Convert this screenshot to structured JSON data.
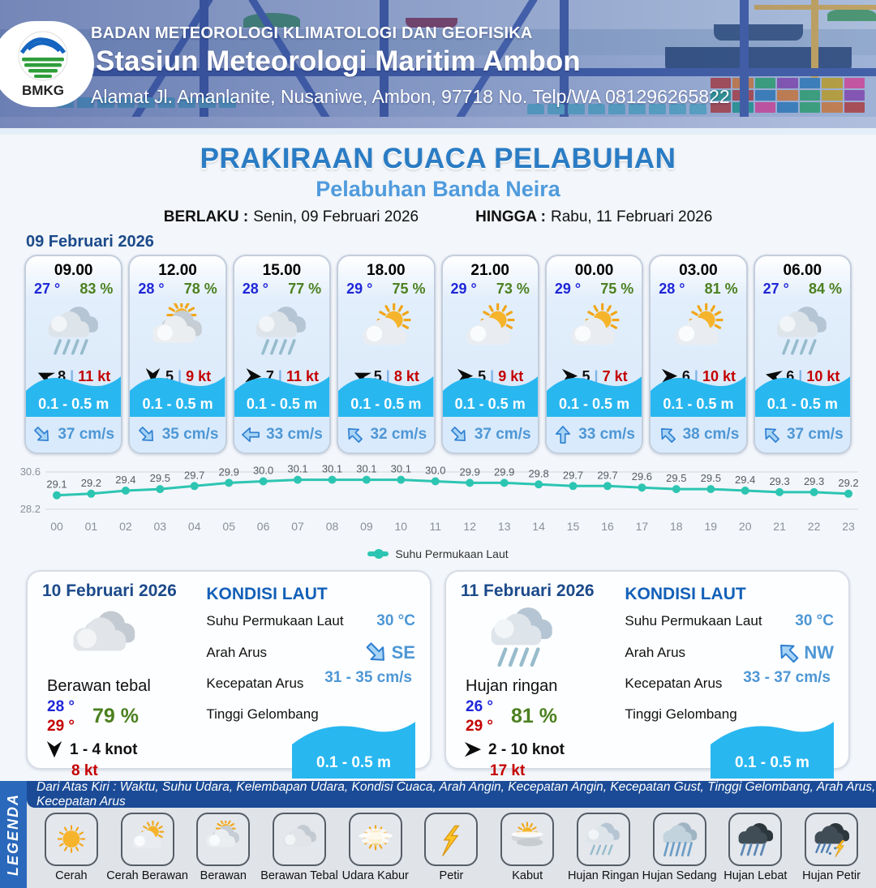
{
  "header": {
    "org": "BADAN METEOROLOGI KLIMATOLOGI DAN GEOFISIKA",
    "station": "Stasiun Meteorologi Maritim Ambon",
    "address": "Alamat Jl. Amanlanite, Nusaniwe, Ambon, 97718   No. Telp/WA  081296265822",
    "logo_text": "BMKG"
  },
  "title": {
    "main": "PRAKIRAAN CUACA PELABUHAN",
    "port": "Pelabuhan Banda Neira",
    "berlaku_label": "BERLAKU :",
    "berlaku_value": "Senin, 09 Februari 2026",
    "hingga_label": "HINGGA :",
    "hingga_value": "Rabu, 11 Februari 2026"
  },
  "forecast_date": "09 Februari 2026",
  "sep": "|",
  "hourly": [
    {
      "time": "09.00",
      "temp": "27 °",
      "humidity": "83 %",
      "icon": "hujan-ringan",
      "wind_deg": 205,
      "wind": "8",
      "gust": "11 kt",
      "wave": "0.1 - 0.5 m",
      "cur_deg": 45,
      "current": "37 cm/s"
    },
    {
      "time": "12.00",
      "temp": "28 °",
      "humidity": "78 %",
      "icon": "berawan",
      "wind_deg": 90,
      "wind": "5",
      "gust": "9 kt",
      "wave": "0.1 - 0.5 m",
      "cur_deg": 45,
      "current": "35 cm/s"
    },
    {
      "time": "15.00",
      "temp": "28 °",
      "humidity": "77 %",
      "icon": "hujan-ringan",
      "wind_deg": 5,
      "wind": "7",
      "gust": "11 kt",
      "wave": "0.1 - 0.5 m",
      "cur_deg": 180,
      "current": "33 cm/s"
    },
    {
      "time": "18.00",
      "temp": "29 °",
      "humidity": "75 %",
      "icon": "cerah-berawan",
      "wind_deg": 205,
      "wind": "5",
      "gust": "8 kt",
      "wave": "0.1 - 0.5 m",
      "cur_deg": -135,
      "current": "32 cm/s"
    },
    {
      "time": "21.00",
      "temp": "29 °",
      "humidity": "73 %",
      "icon": "cerah-berawan",
      "wind_deg": 0,
      "wind": "5",
      "gust": "9 kt",
      "wave": "0.1 - 0.5 m",
      "cur_deg": 45,
      "current": "37 cm/s"
    },
    {
      "time": "00.00",
      "temp": "29 °",
      "humidity": "75 %",
      "icon": "cerah-berawan",
      "wind_deg": 0,
      "wind": "5",
      "gust": "7 kt",
      "wave": "0.1 - 0.5 m",
      "cur_deg": -90,
      "current": "33 cm/s"
    },
    {
      "time": "03.00",
      "temp": "28 °",
      "humidity": "81 %",
      "icon": "cerah-berawan",
      "wind_deg": 0,
      "wind": "6",
      "gust": "10 kt",
      "wave": "0.1 - 0.5 m",
      "cur_deg": -135,
      "current": "38 cm/s"
    },
    {
      "time": "06.00",
      "temp": "27 °",
      "humidity": "84 %",
      "icon": "hujan-ringan",
      "wind_deg": 192,
      "wind": "6",
      "gust": "10 kt",
      "wave": "0.1 - 0.5 m",
      "cur_deg": -135,
      "current": "37 cm/s"
    }
  ],
  "chart_data": {
    "type": "line",
    "series_name": "Suhu Permukaan Laut",
    "x": [
      "00",
      "01",
      "02",
      "03",
      "04",
      "05",
      "06",
      "07",
      "08",
      "09",
      "10",
      "11",
      "12",
      "13",
      "14",
      "15",
      "16",
      "17",
      "18",
      "19",
      "20",
      "21",
      "22",
      "23"
    ],
    "values": [
      29.1,
      29.2,
      29.4,
      29.5,
      29.7,
      29.9,
      30.0,
      30.1,
      30.1,
      30.1,
      30.1,
      30.0,
      29.9,
      29.9,
      29.8,
      29.7,
      29.7,
      29.6,
      29.5,
      29.5,
      29.4,
      29.3,
      29.3,
      29.2
    ],
    "ylim": [
      28.2,
      30.6
    ],
    "y_tick_top": "30.6",
    "y_tick_bottom": "28.2",
    "line_color": "#2cc5b2",
    "legend_position": "bottom",
    "grid": true
  },
  "days": [
    {
      "date": "10 Februari 2026",
      "icon": "berawan-tebal",
      "condition": "Berawan tebal",
      "temp_min": "28 °",
      "temp_max": "29 °",
      "humidity": "79 %",
      "wind_deg": 90,
      "wind_range": "1 - 4 knot",
      "gust": "8 kt",
      "sea": {
        "title": "KONDISI LAUT",
        "sst_label": "Suhu Permukaan Laut",
        "sst": "30 °C",
        "dir_label": "Arah Arus",
        "dir": "SE",
        "dir_deg": 45,
        "speed_label": "Kecepatan Arus",
        "speed": "31 - 35 cm/s",
        "wave_label": "Tinggi Gelombang",
        "wave": "0.1 - 0.5 m"
      }
    },
    {
      "date": "11 Februari 2026",
      "icon": "hujan-ringan",
      "condition": "Hujan ringan",
      "temp_min": "26 °",
      "temp_max": "29 °",
      "humidity": "81 %",
      "wind_deg": 0,
      "wind_range": "2 - 10 knot",
      "gust": "17 kt",
      "sea": {
        "title": "KONDISI LAUT",
        "sst_label": "Suhu Permukaan Laut",
        "sst": "30 °C",
        "dir_label": "Arah Arus",
        "dir": "NW",
        "dir_deg": -135,
        "speed_label": "Kecepatan Arus",
        "speed": "33 - 37 cm/s",
        "wave_label": "Tinggi Gelombang",
        "wave": "0.1 - 0.5 m"
      }
    }
  ],
  "legend": {
    "strip": "LEGENDA",
    "note": "Dari Atas Kiri : Waktu, Suhu Udara, Kelembapan Udara, Kondisi Cuaca, Arah Angin, Kecepatan Angin, Kecepatan Gust, Tinggi Gelombang, Arah Arus, Kecepatan Arus",
    "items": [
      {
        "label": "Cerah",
        "icon": "cerah"
      },
      {
        "label": "Cerah Berawan",
        "icon": "cerah-berawan"
      },
      {
        "label": "Berawan",
        "icon": "berawan"
      },
      {
        "label": "Berawan Tebal",
        "icon": "berawan-tebal"
      },
      {
        "label": "Udara Kabur",
        "icon": "udara-kabur"
      },
      {
        "label": "Petir",
        "icon": "petir"
      },
      {
        "label": "Kabut",
        "icon": "kabut"
      },
      {
        "label": "Hujan Ringan",
        "icon": "hujan-ringan"
      },
      {
        "label": "Hujan Sedang",
        "icon": "hujan-sedang"
      },
      {
        "label": "Hujan Lebat",
        "icon": "hujan-lebat"
      },
      {
        "label": "Hujan Petir",
        "icon": "hujan-petir"
      }
    ]
  },
  "colors": {
    "accent_blue": "#1b4a8a",
    "title_blue": "#2a7cc4",
    "port_blue": "#4f9bdd",
    "temp_blue": "#1f27d8",
    "humidity_green": "#4c8020",
    "gust_red": "#c40000",
    "wave_cyan": "#29b7f0",
    "current_blue": "#4e97d5",
    "chart_teal": "#2cc5b2",
    "legend_navy": "#1b4b96",
    "legend_strip_blue": "#2a68bb"
  }
}
